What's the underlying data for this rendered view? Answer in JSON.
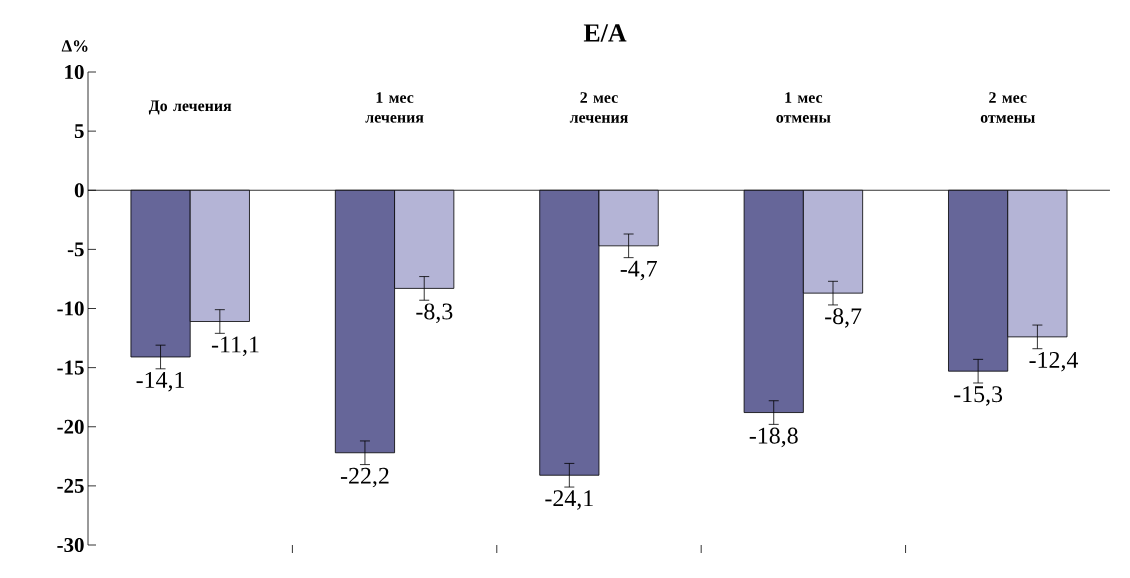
{
  "chart_data": {
    "type": "bar",
    "title": "E/A",
    "ylabel": "Δ%",
    "categories": [
      "До лечения",
      "1 мес лечения",
      "2 мес лечения",
      "1 мес отмены",
      "2 мес отмены"
    ],
    "series": [
      {
        "color": "#666699",
        "values": [
          -14.1,
          -22.2,
          -24.1,
          -18.8,
          -15.3
        ],
        "value_labels": [
          "-14,1",
          "-22,2",
          "-24,1",
          "-18,8",
          "-15,3"
        ],
        "errors": [
          1,
          1,
          1,
          1,
          1
        ]
      },
      {
        "color": "#b4b4d6",
        "values": [
          -11.1,
          -8.3,
          -4.7,
          -8.7,
          -12.4
        ],
        "value_labels": [
          "-11,1",
          "-8,3",
          "-4,7",
          "-8,7",
          "-12,4"
        ],
        "errors": [
          1,
          1,
          1,
          1,
          1
        ]
      }
    ],
    "ylim": [
      -30,
      10
    ],
    "yticks": [
      -30,
      -25,
      -20,
      -15,
      -10,
      -5,
      0,
      5,
      10
    ]
  }
}
